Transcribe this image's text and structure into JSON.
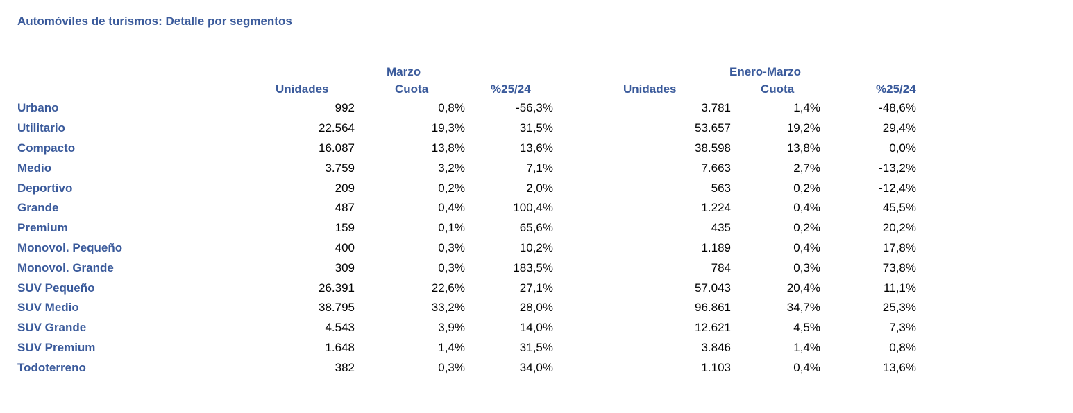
{
  "title": "Automóviles de turismos: Detalle por segmentos",
  "groups": {
    "march": "Marzo",
    "ytd": "Enero-Marzo"
  },
  "columns": {
    "march_units": "Unidades",
    "march_share": "Cuota",
    "march_change": "%25/24",
    "ytd_units": "Unidades",
    "ytd_share": "Cuota",
    "ytd_change": "%25/24"
  },
  "rows": [
    {
      "segment": "Urbano",
      "march_units": "992",
      "march_share": "0,8%",
      "march_change": "-56,3%",
      "ytd_units": "3.781",
      "ytd_share": "1,4%",
      "ytd_change": "-48,6%"
    },
    {
      "segment": "Utilitario",
      "march_units": "22.564",
      "march_share": "19,3%",
      "march_change": "31,5%",
      "ytd_units": "53.657",
      "ytd_share": "19,2%",
      "ytd_change": "29,4%"
    },
    {
      "segment": "Compacto",
      "march_units": "16.087",
      "march_share": "13,8%",
      "march_change": "13,6%",
      "ytd_units": "38.598",
      "ytd_share": "13,8%",
      "ytd_change": "0,0%"
    },
    {
      "segment": "Medio",
      "march_units": "3.759",
      "march_share": "3,2%",
      "march_change": "7,1%",
      "ytd_units": "7.663",
      "ytd_share": "2,7%",
      "ytd_change": "-13,2%"
    },
    {
      "segment": "Deportivo",
      "march_units": "209",
      "march_share": "0,2%",
      "march_change": "2,0%",
      "ytd_units": "563",
      "ytd_share": "0,2%",
      "ytd_change": "-12,4%"
    },
    {
      "segment": "Grande",
      "march_units": "487",
      "march_share": "0,4%",
      "march_change": "100,4%",
      "ytd_units": "1.224",
      "ytd_share": "0,4%",
      "ytd_change": "45,5%"
    },
    {
      "segment": "Premium",
      "march_units": "159",
      "march_share": "0,1%",
      "march_change": "65,6%",
      "ytd_units": "435",
      "ytd_share": "0,2%",
      "ytd_change": "20,2%"
    },
    {
      "segment": "Monovol. Pequeño",
      "march_units": "400",
      "march_share": "0,3%",
      "march_change": "10,2%",
      "ytd_units": "1.189",
      "ytd_share": "0,4%",
      "ytd_change": "17,8%"
    },
    {
      "segment": "Monovol. Grande",
      "march_units": "309",
      "march_share": "0,3%",
      "march_change": "183,5%",
      "ytd_units": "784",
      "ytd_share": "0,3%",
      "ytd_change": "73,8%"
    },
    {
      "segment": "SUV Pequeño",
      "march_units": "26.391",
      "march_share": "22,6%",
      "march_change": "27,1%",
      "ytd_units": "57.043",
      "ytd_share": "20,4%",
      "ytd_change": "11,1%"
    },
    {
      "segment": "SUV Medio",
      "march_units": "38.795",
      "march_share": "33,2%",
      "march_change": "28,0%",
      "ytd_units": "96.861",
      "ytd_share": "34,7%",
      "ytd_change": "25,3%"
    },
    {
      "segment": "SUV Grande",
      "march_units": "4.543",
      "march_share": "3,9%",
      "march_change": "14,0%",
      "ytd_units": "12.621",
      "ytd_share": "4,5%",
      "ytd_change": "7,3%"
    },
    {
      "segment": "SUV Premium",
      "march_units": "1.648",
      "march_share": "1,4%",
      "march_change": "31,5%",
      "ytd_units": "3.846",
      "ytd_share": "1,4%",
      "ytd_change": "0,8%"
    },
    {
      "segment": "Todoterreno",
      "march_units": "382",
      "march_share": "0,3%",
      "march_change": "34,0%",
      "ytd_units": "1.103",
      "ytd_share": "0,4%",
      "ytd_change": "13,6%"
    }
  ]
}
